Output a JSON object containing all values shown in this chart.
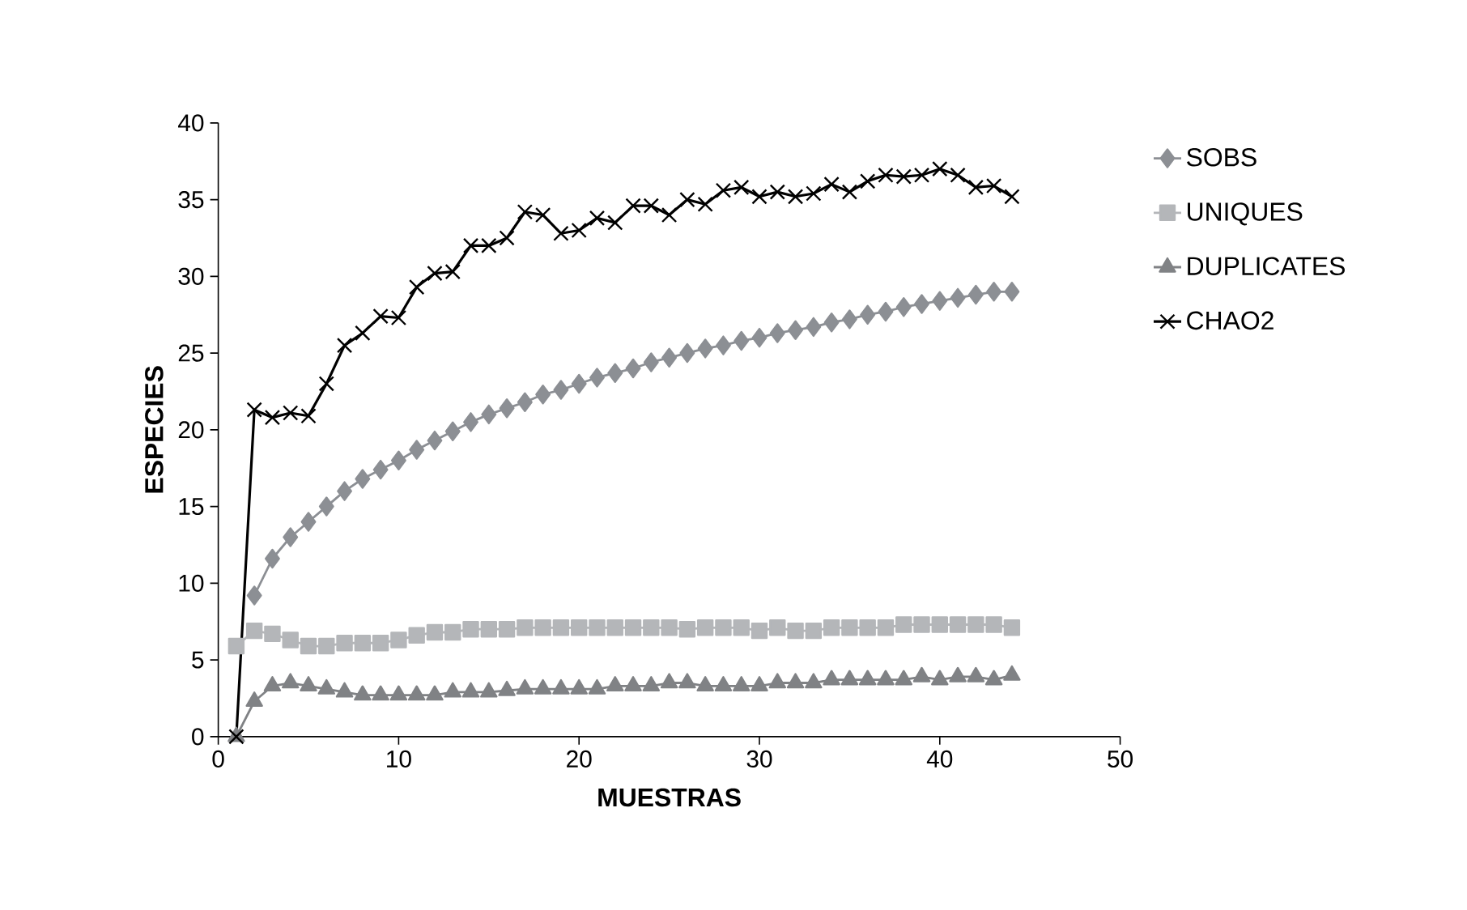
{
  "chart_data": {
    "type": "line",
    "xlabel": "MUESTRAS",
    "ylabel": "ESPECIES",
    "x": [
      1,
      2,
      3,
      4,
      5,
      6,
      7,
      8,
      9,
      10,
      11,
      12,
      13,
      14,
      15,
      16,
      17,
      18,
      19,
      20,
      21,
      22,
      23,
      24,
      25,
      26,
      27,
      28,
      29,
      30,
      31,
      32,
      33,
      34,
      35,
      36,
      37,
      38,
      39,
      40,
      41,
      42,
      43,
      44
    ],
    "xlim": [
      0,
      50
    ],
    "xticks": [
      0,
      10,
      20,
      30,
      40,
      50
    ],
    "ylim": [
      0,
      40
    ],
    "yticks": [
      0,
      5,
      10,
      15,
      20,
      25,
      30,
      35,
      40
    ],
    "grid": false,
    "legend": "right",
    "series": [
      {
        "name": "SOBS",
        "color": "#8c8f94",
        "marker": "diamond",
        "values": [
          null,
          9.2,
          11.6,
          13,
          14,
          15,
          16,
          16.8,
          17.4,
          18,
          18.7,
          19.3,
          19.9,
          20.5,
          21,
          21.4,
          21.8,
          22.3,
          22.6,
          23,
          23.4,
          23.7,
          24,
          24.4,
          24.7,
          25,
          25.3,
          25.5,
          25.8,
          26,
          26.3,
          26.5,
          26.7,
          27,
          27.2,
          27.5,
          27.7,
          28,
          28.2,
          28.4,
          28.6,
          28.8,
          29,
          29
        ]
      },
      {
        "name": "UNIQUES",
        "color": "#b4b6b9",
        "marker": "square",
        "values": [
          5.9,
          6.9,
          6.7,
          6.3,
          5.9,
          5.9,
          6.1,
          6.1,
          6.1,
          6.3,
          6.6,
          6.8,
          6.8,
          7,
          7,
          7,
          7.1,
          7.1,
          7.1,
          7.1,
          7.1,
          7.1,
          7.1,
          7.1,
          7.1,
          7,
          7.1,
          7.1,
          7.1,
          6.9,
          7.1,
          6.9,
          6.9,
          7.1,
          7.1,
          7.1,
          7.1,
          7.3,
          7.3,
          7.3,
          7.3,
          7.3,
          7.3,
          7.1
        ]
      },
      {
        "name": "DUPLICATES",
        "color": "#808285",
        "marker": "triangle",
        "values": [
          0,
          2.3,
          3.3,
          3.5,
          3.3,
          3.1,
          2.9,
          2.7,
          2.7,
          2.7,
          2.7,
          2.7,
          2.9,
          2.9,
          2.9,
          3,
          3.1,
          3.1,
          3.1,
          3.1,
          3.1,
          3.3,
          3.3,
          3.3,
          3.5,
          3.5,
          3.3,
          3.3,
          3.3,
          3.3,
          3.5,
          3.5,
          3.5,
          3.7,
          3.7,
          3.7,
          3.7,
          3.7,
          3.9,
          3.7,
          3.9,
          3.9,
          3.7,
          4
        ]
      },
      {
        "name": "CHAO2",
        "color": "#000000",
        "marker": "cross",
        "values": [
          0,
          21.3,
          20.8,
          21.1,
          20.9,
          23,
          25.5,
          26.3,
          27.4,
          27.3,
          29.3,
          30.2,
          30.3,
          32,
          32,
          32.5,
          34.2,
          34,
          32.8,
          33,
          33.8,
          33.5,
          34.6,
          34.6,
          34,
          35,
          34.7,
          35.6,
          35.8,
          35.2,
          35.5,
          35.2,
          35.4,
          36,
          35.5,
          36.2,
          36.6,
          36.5,
          36.6,
          37,
          36.6,
          35.8,
          35.9,
          35.2
        ]
      }
    ]
  }
}
